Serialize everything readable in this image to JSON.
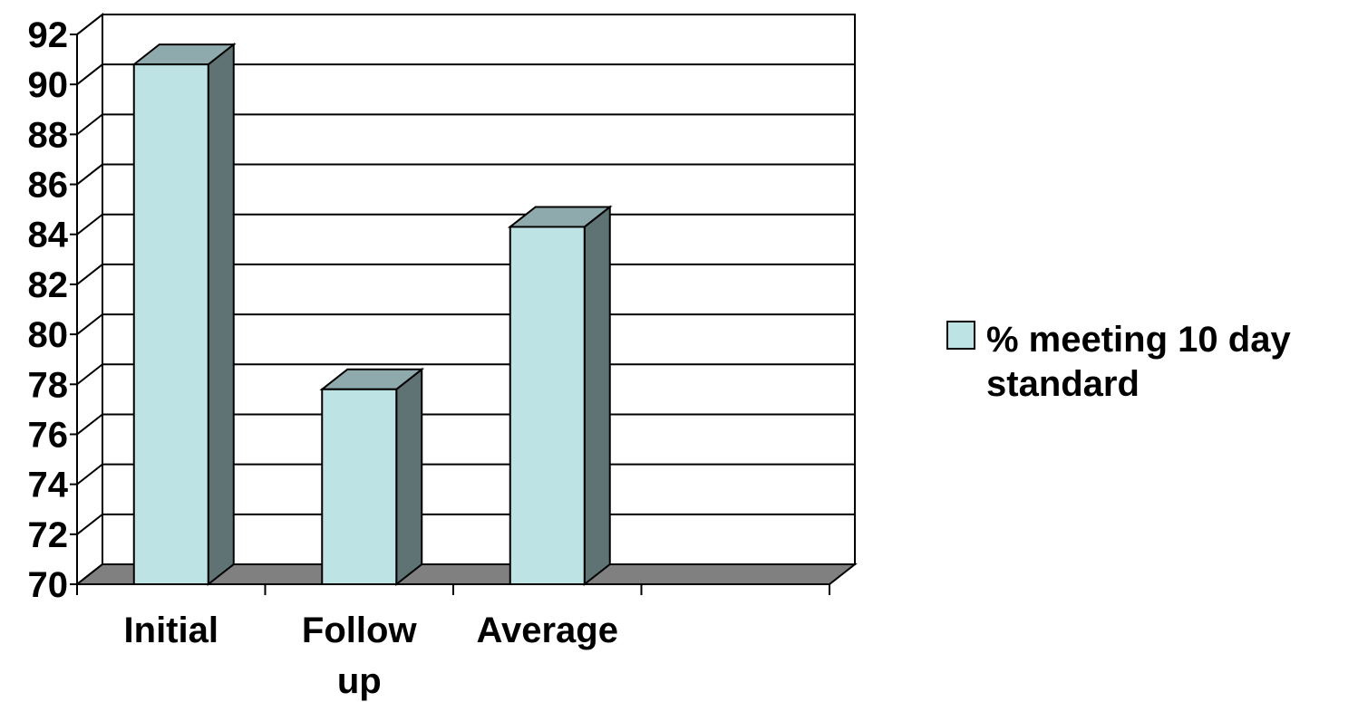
{
  "chart_data": {
    "type": "bar",
    "three_d": true,
    "categories": [
      "Initial",
      "Follow up",
      "Average",
      ""
    ],
    "category_lines": [
      [
        "Initial"
      ],
      [
        "Follow",
        "up"
      ],
      [
        "Average"
      ],
      [
        ""
      ]
    ],
    "series": [
      {
        "name": "% meeting 10 day standard",
        "name_lines": [
          "% meeting 10 day",
          "standard"
        ],
        "values": [
          90.8,
          77.8,
          84.3,
          null
        ]
      }
    ],
    "title": "",
    "xlabel": "",
    "ylabel": "",
    "ylim": [
      70,
      92
    ],
    "yticks": [
      70,
      72,
      74,
      76,
      78,
      80,
      82,
      84,
      86,
      88,
      90,
      92
    ],
    "grid": true,
    "legend_position": "right",
    "colors": {
      "bar_front": "#bde3e5",
      "bar_top": "#8faaad",
      "bar_side": "#5f7375",
      "floor": "#808080",
      "stroke": "#000000"
    }
  }
}
